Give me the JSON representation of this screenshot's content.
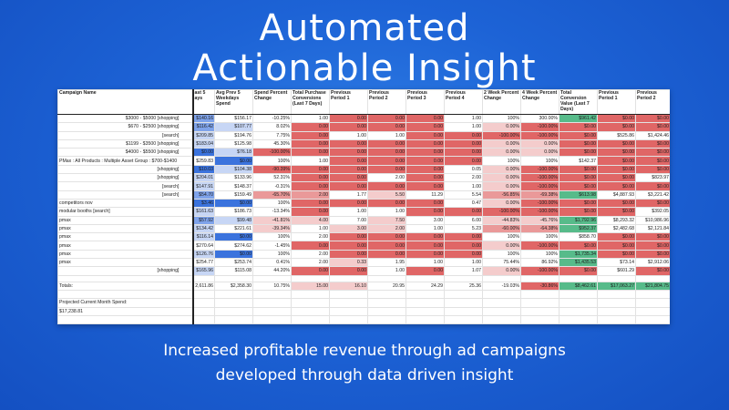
{
  "headline": {
    "line1": "Automated",
    "line2": "Actionable Insight"
  },
  "subtitle": {
    "line1": "Increased profitable revenue through ad campaigns",
    "line2": "developed through data driven insight"
  },
  "colors": {
    "background": "#1d63d6",
    "blue_dark": "#3b73dd",
    "blue_mid": "#7fa3ea",
    "blue_light": "#c7d6f5",
    "red_strong": "#e06666",
    "red_mid": "#ea9999",
    "red_light": "#f4cccc",
    "green": "#57bb8a",
    "green_light": "#b7e1cd"
  },
  "table": {
    "headers": [
      "Campaign Name",
      "ast 5\nays",
      "Avg Prev 5 Weekdays Spend",
      "Spend Percent Change",
      "Total Purchase Conversions (Last 7 Days)",
      "Previous Period 1",
      "Previous Period 2",
      "Previous Period 3",
      "Previous Period 4",
      "2 Week Percent Change",
      "4 Week Percent Change",
      "Total Conversion Value (Last 7 Days)",
      "Previous Period 1",
      "Previous Period 2"
    ],
    "rows": [
      {
        "name": "$3000 - $5000 [shopping]",
        "align": "right",
        "cells": [
          "$140.16",
          "$156.17",
          "-10.25%",
          "1.00",
          "0.00",
          "0.00",
          "0.00",
          "1.00",
          "100%",
          "300.00%",
          "$961.42",
          "$0.00",
          "$0.00"
        ],
        "colors": [
          "blue_mid",
          "",
          "",
          "",
          "red_strong",
          "red_strong",
          "red_strong",
          "",
          "",
          "",
          "green",
          "red_strong",
          "red_strong"
        ]
      },
      {
        "name": "$670 - $2500 [shopping]",
        "align": "right",
        "cells": [
          "$116.42",
          "$107.77",
          "8.02%",
          "0.00",
          "0.00",
          "0.00",
          "0.00",
          "1.00",
          "0.00%",
          "-100.00%",
          "$0.00",
          "$0.00",
          "$0.00"
        ],
        "colors": [
          "blue_mid",
          "blue_light",
          "",
          "red_strong",
          "red_strong",
          "red_strong",
          "red_strong",
          "",
          "red_light",
          "red_strong",
          "red_strong",
          "red_strong",
          "red_strong"
        ]
      },
      {
        "name": "[search]",
        "align": "right",
        "cells": [
          "$209.85",
          "$194.76",
          "7.75%",
          "0.00",
          "1.00",
          "1.00",
          "0.00",
          "0.00",
          "-100.00%",
          "-100.00%",
          "$0.00",
          "$525.86",
          "$1,424.46"
        ],
        "colors": [
          "blue_light",
          "",
          "",
          "red_strong",
          "",
          "",
          "red_strong",
          "red_strong",
          "red_strong",
          "red_strong",
          "red_strong",
          "",
          ""
        ]
      },
      {
        "name": "$1199 - $3500 [shopping]",
        "align": "right",
        "cells": [
          "$183.04",
          "$125.98",
          "45.30%",
          "0.00",
          "0.00",
          "0.00",
          "0.00",
          "0.00",
          "0.00%",
          "0.00%",
          "$0.00",
          "$0.00",
          "$0.00"
        ],
        "colors": [
          "blue_light",
          "",
          "",
          "red_strong",
          "red_strong",
          "red_strong",
          "red_strong",
          "red_strong",
          "red_light",
          "red_light",
          "red_strong",
          "red_strong",
          "red_strong"
        ]
      },
      {
        "name": "$4000 - $5500 [shopping]",
        "align": "right",
        "cells": [
          "$0.00",
          "$76.18",
          "-100.00%",
          "0.00",
          "0.00",
          "0.00",
          "0.00",
          "0.00",
          "0.00%",
          "0.00%",
          "$0.00",
          "$0.00",
          "$0.00"
        ],
        "colors": [
          "blue_dark",
          "blue_light",
          "red_strong",
          "red_strong",
          "red_strong",
          "red_strong",
          "red_strong",
          "red_strong",
          "red_light",
          "red_light",
          "red_strong",
          "red_strong",
          "red_strong"
        ]
      },
      {
        "name": "PMax : All Products : Multiple Asset Group : $700-$1400",
        "align": "left",
        "cells": [
          "$259.83",
          "$0.00",
          "100%",
          "1.00",
          "0.00",
          "0.00",
          "0.00",
          "0.00",
          "100%",
          "100%",
          "$142.37",
          "$0.00",
          "$0.00"
        ],
        "colors": [
          "",
          "blue_dark",
          "",
          "",
          "red_strong",
          "red_strong",
          "red_strong",
          "red_strong",
          "",
          "",
          "",
          "red_strong",
          "red_strong"
        ]
      },
      {
        "name": "[shopping]",
        "align": "right",
        "cells": [
          "$10.03",
          "$104.38",
          "-90.39%",
          "0.00",
          "0.00",
          "0.00",
          "0.00",
          "0.05",
          "0.00%",
          "-100.00%",
          "$0.00",
          "$0.00",
          "$0.00"
        ],
        "colors": [
          "blue_dark",
          "blue_light",
          "red_strong",
          "red_strong",
          "red_strong",
          "red_strong",
          "red_strong",
          "",
          "red_light",
          "red_strong",
          "red_strong",
          "red_strong",
          "red_strong"
        ]
      },
      {
        "name": "[shopping]",
        "align": "right",
        "cells": [
          "$204.01",
          "$133.96",
          "52.31%",
          "0.00",
          "0.00",
          "2.00",
          "0.00",
          "2.00",
          "0.00%",
          "-100.00%",
          "$0.00",
          "$0.00",
          "$823.97"
        ],
        "colors": [
          "blue_light",
          "",
          "",
          "red_strong",
          "red_strong",
          "",
          "red_strong",
          "",
          "red_light",
          "red_strong",
          "red_strong",
          "red_strong",
          ""
        ]
      },
      {
        "name": "[search]",
        "align": "right",
        "cells": [
          "$147.91",
          "$148.37",
          "-0.31%",
          "0.00",
          "0.00",
          "0.00",
          "0.00",
          "1.00",
          "0.00%",
          "-100.00%",
          "$0.00",
          "$0.00",
          "$0.00"
        ],
        "colors": [
          "blue_light",
          "",
          "",
          "red_strong",
          "red_strong",
          "red_strong",
          "red_strong",
          "",
          "red_light",
          "red_strong",
          "red_strong",
          "red_strong",
          "red_strong"
        ]
      },
      {
        "name": "[search]",
        "align": "right",
        "cells": [
          "$54.70",
          "$159.49",
          "-65.70%",
          "2.00",
          "1.77",
          "5.50",
          "11.29",
          "5.54",
          "-56.85%",
          "-69.38%",
          "$613.98",
          "$4,887.93",
          "$3,221.42"
        ],
        "colors": [
          "blue_mid",
          "",
          "red_mid",
          "red_mid",
          "",
          "red_light",
          "",
          "",
          "red_mid",
          "red_mid",
          "green",
          "",
          ""
        ]
      },
      {
        "name": "competitors nov",
        "align": "left",
        "cells": [
          "$3.46",
          "$0.00",
          "100%",
          "0.00",
          "0.00",
          "0.00",
          "0.00",
          "0.47",
          "0.00%",
          "-100.00%",
          "$0.00",
          "$0.00",
          "$0.00"
        ],
        "colors": [
          "blue_dark",
          "blue_dark",
          "",
          "red_strong",
          "red_strong",
          "red_strong",
          "red_strong",
          "",
          "red_light",
          "red_strong",
          "red_strong",
          "red_strong",
          "red_strong"
        ]
      },
      {
        "name": "modular booths [search]",
        "align": "left",
        "cells": [
          "$161.63",
          "$186.73",
          "-13.34%",
          "0.00",
          "1.00",
          "1.00",
          "0.00",
          "0.00",
          "-100.00%",
          "-100.00%",
          "$0.00",
          "$0.00",
          "$392.05"
        ],
        "colors": [
          "blue_light",
          "",
          "",
          "red_strong",
          "",
          "",
          "red_strong",
          "red_strong",
          "red_strong",
          "red_strong",
          "red_strong",
          "red_strong",
          ""
        ]
      },
      {
        "name": "pmax",
        "align": "left",
        "cells": [
          "$57.92",
          "$99.48",
          "-41.81%",
          "4.00",
          "7.00",
          "7.50",
          "3.00",
          "6.00",
          "-44.83%",
          "-45.76%",
          "$1,792.96",
          "$8,293.32",
          "$10,986.96"
        ],
        "colors": [
          "blue_mid",
          "blue_light",
          "red_light",
          "red_light",
          "",
          "red_light",
          "",
          "",
          "red_light",
          "red_light",
          "green",
          "",
          ""
        ]
      },
      {
        "name": "pmax",
        "align": "left",
        "cells": [
          "$134.42",
          "$221.61",
          "-39.34%",
          "1.00",
          "3.00",
          "2.00",
          "1.00",
          "5.23",
          "-60.00%",
          "-64.38%",
          "$952.37",
          "$2,482.68",
          "$2,121.84"
        ],
        "colors": [
          "blue_light",
          "",
          "red_light",
          "",
          "red_light",
          "red_light",
          "",
          "",
          "red_mid",
          "red_mid",
          "green",
          "",
          ""
        ]
      },
      {
        "name": "pmax",
        "align": "left",
        "cells": [
          "$116.14",
          "$0.00",
          "100%",
          "2.00",
          "0.00",
          "0.00",
          "0.00",
          "0.00",
          "100%",
          "100%",
          "$858.70",
          "$0.00",
          "$0.00"
        ],
        "colors": [
          "blue_light",
          "blue_dark",
          "",
          "",
          "red_strong",
          "red_strong",
          "red_strong",
          "red_strong",
          "",
          "",
          "",
          "red_strong",
          "red_strong"
        ]
      },
      {
        "name": "pmax",
        "align": "left",
        "cells": [
          "$270.64",
          "$274.62",
          "-1.45%",
          "0.00",
          "0.00",
          "0.00",
          "0.00",
          "0.00",
          "0.00%",
          "-100.00%",
          "$0.00",
          "$0.00",
          "$0.00"
        ],
        "colors": [
          "",
          "",
          "",
          "red_strong",
          "red_strong",
          "red_strong",
          "red_strong",
          "red_strong",
          "red_light",
          "red_strong",
          "red_strong",
          "red_strong",
          "red_strong"
        ]
      },
      {
        "name": "pmax",
        "align": "left",
        "cells": [
          "$126.76",
          "$0.00",
          "100%",
          "2.00",
          "0.00",
          "0.00",
          "0.00",
          "0.00",
          "100%",
          "100%",
          "$1,735.34",
          "$0.00",
          "$0.00"
        ],
        "colors": [
          "blue_light",
          "blue_dark",
          "",
          "",
          "red_strong",
          "red_strong",
          "red_strong",
          "red_strong",
          "",
          "",
          "green",
          "red_strong",
          "red_strong"
        ]
      },
      {
        "name": "pmax",
        "align": "left",
        "cells": [
          "$254.77",
          "$253.74",
          "0.41%",
          "2.00",
          "0.33",
          "1.95",
          "1.00",
          "1.00",
          "75.44%",
          "86.92%",
          "$1,435.53",
          "$73.14",
          "$2,912.06"
        ],
        "colors": [
          "",
          "",
          "",
          "",
          "red_light",
          "",
          "",
          "",
          "",
          "",
          "green",
          "",
          ""
        ]
      },
      {
        "name": "[shopping]",
        "align": "right",
        "cells": [
          "$165.96",
          "$115.08",
          "44.20%",
          "0.00",
          "0.00",
          "1.00",
          "0.00",
          "1.07",
          "0.00%",
          "-100.00%",
          "$0.00",
          "$601.29",
          "$0.00"
        ],
        "colors": [
          "blue_light",
          "",
          "",
          "red_strong",
          "red_strong",
          "",
          "red_strong",
          "",
          "red_light",
          "red_strong",
          "red_strong",
          "",
          "red_strong"
        ]
      }
    ],
    "totals": {
      "label": "Totals:",
      "cells": [
        "2,611.86",
        "$2,358.30",
        "10.75%",
        "15.00",
        "16.10",
        "20.95",
        "24.29",
        "25.36",
        "-19.03%",
        "-30.86%",
        "$8,462.61",
        "$17,063.27",
        "$21,804.75"
      ],
      "colors": [
        "",
        "",
        "",
        "red_light",
        "red_light",
        "",
        "",
        "",
        "",
        "red_strong",
        "green",
        "green",
        "green"
      ]
    },
    "projected_label": "Projected Current Month Spend:",
    "projected_value": "$17,238.81"
  }
}
